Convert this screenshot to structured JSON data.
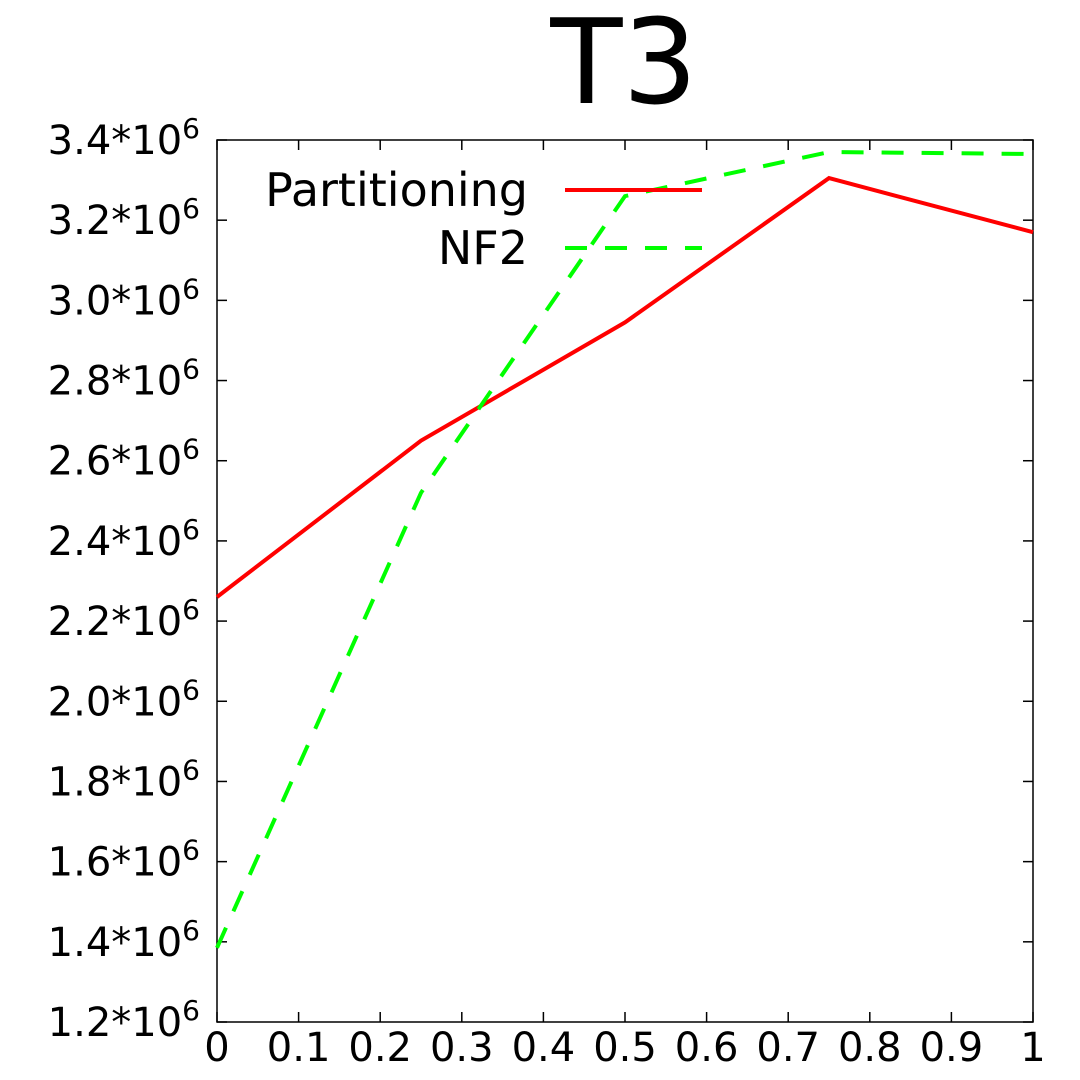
{
  "chart_data": {
    "type": "line",
    "title": "T3",
    "xlabel": "",
    "ylabel": "",
    "xlim": [
      0,
      1
    ],
    "ylim": [
      1200000,
      3400000
    ],
    "grid": false,
    "legend_position": "top-right",
    "x_ticks": [
      {
        "value": 0,
        "label": "0"
      },
      {
        "value": 0.1,
        "label": "0.1"
      },
      {
        "value": 0.2,
        "label": "0.2"
      },
      {
        "value": 0.3,
        "label": "0.3"
      },
      {
        "value": 0.4,
        "label": "0.4"
      },
      {
        "value": 0.5,
        "label": "0.5"
      },
      {
        "value": 0.6,
        "label": "0.6"
      },
      {
        "value": 0.7,
        "label": "0.7"
      },
      {
        "value": 0.8,
        "label": "0.8"
      },
      {
        "value": 0.9,
        "label": "0.9"
      },
      {
        "value": 1,
        "label": "1"
      }
    ],
    "y_ticks": [
      {
        "value": 1200000,
        "label": "1.2*10",
        "exp": "6"
      },
      {
        "value": 1400000,
        "label": "1.4*10",
        "exp": "6"
      },
      {
        "value": 1600000,
        "label": "1.6*10",
        "exp": "6"
      },
      {
        "value": 1800000,
        "label": "1.8*10",
        "exp": "6"
      },
      {
        "value": 2000000,
        "label": "2.0*10",
        "exp": "6"
      },
      {
        "value": 2200000,
        "label": "2.2*10",
        "exp": "6"
      },
      {
        "value": 2400000,
        "label": "2.4*10",
        "exp": "6"
      },
      {
        "value": 2600000,
        "label": "2.6*10",
        "exp": "6"
      },
      {
        "value": 2800000,
        "label": "2.8*10",
        "exp": "6"
      },
      {
        "value": 3000000,
        "label": "3.0*10",
        "exp": "6"
      },
      {
        "value": 3200000,
        "label": "3.2*10",
        "exp": "6"
      },
      {
        "value": 3400000,
        "label": "3.4*10",
        "exp": "6"
      }
    ],
    "series": [
      {
        "name": "Partitioning",
        "color": "#ff0000",
        "dash": "solid",
        "x": [
          0,
          0.25,
          0.5,
          0.75,
          1
        ],
        "y": [
          2260000,
          2650000,
          2945000,
          3305000,
          3170000
        ]
      },
      {
        "name": "NF2",
        "color": "#00ff00",
        "dash": "dashed",
        "x": [
          0,
          0.25,
          0.5,
          0.75,
          1
        ],
        "y": [
          1385000,
          2520000,
          3260000,
          3370000,
          3365000
        ]
      }
    ]
  }
}
